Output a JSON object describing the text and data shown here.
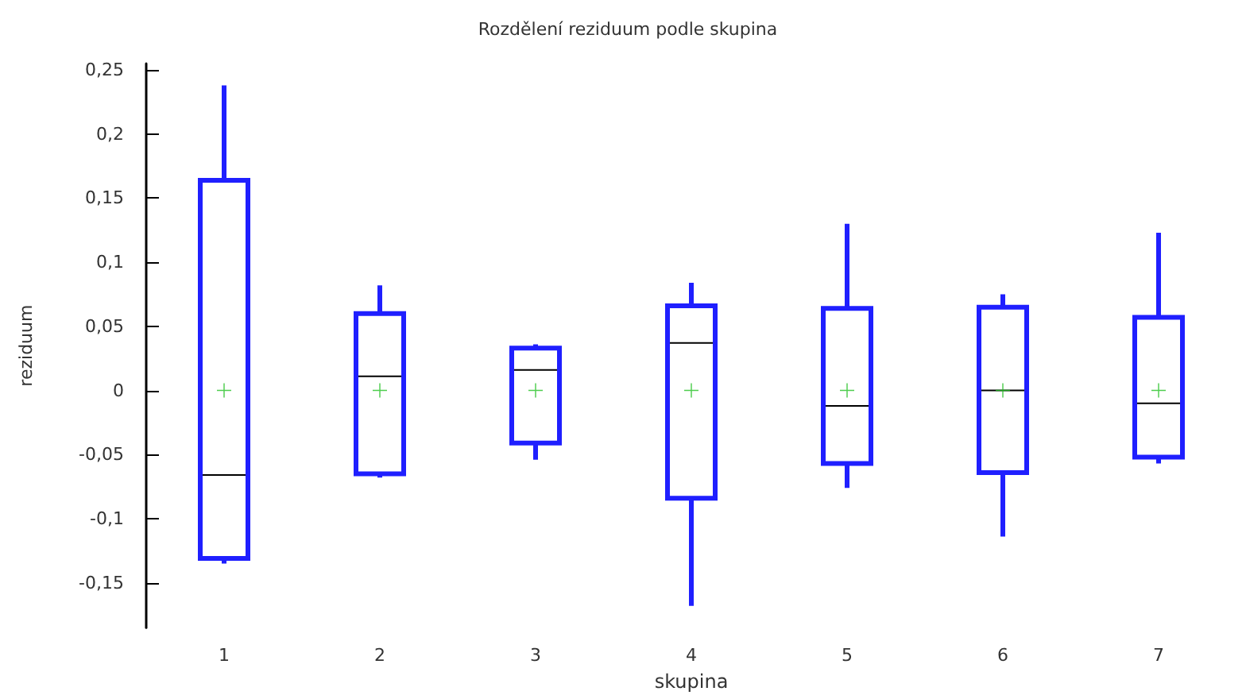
{
  "chart_data": {
    "type": "box",
    "title": "Rozdělení reziduum podle skupina",
    "xlabel": "skupina",
    "ylabel": "reziduum",
    "categories": [
      "1",
      "2",
      "3",
      "4",
      "5",
      "6",
      "7"
    ],
    "ylim": [
      -0.185,
      0.255
    ],
    "yticks": [
      {
        "value": -0.15,
        "label": "-0,15"
      },
      {
        "value": -0.1,
        "label": "-0,1"
      },
      {
        "value": -0.05,
        "label": "-0,05"
      },
      {
        "value": 0,
        "label": "0"
      },
      {
        "value": 0.05,
        "label": "0,05"
      },
      {
        "value": 0.1,
        "label": "0,1"
      },
      {
        "value": 0.15,
        "label": "0,15"
      },
      {
        "value": 0.2,
        "label": "0,2"
      },
      {
        "value": 0.25,
        "label": "0,25"
      }
    ],
    "grid": false,
    "series": [
      {
        "color": "#1f1fff",
        "boxes": [
          {
            "low": -0.135,
            "q1": -0.131,
            "median": -0.066,
            "q3": 0.164,
            "high": 0.238,
            "mean": 0
          },
          {
            "low": -0.068,
            "q1": -0.065,
            "median": 0.011,
            "q3": 0.06,
            "high": 0.082,
            "mean": 0
          },
          {
            "low": -0.054,
            "q1": -0.041,
            "median": 0.016,
            "q3": 0.033,
            "high": 0.036,
            "mean": 0
          },
          {
            "low": -0.168,
            "q1": -0.084,
            "median": 0.037,
            "q3": 0.066,
            "high": 0.084,
            "mean": 0
          },
          {
            "low": -0.076,
            "q1": -0.057,
            "median": -0.012,
            "q3": 0.064,
            "high": 0.13,
            "mean": 0
          },
          {
            "low": -0.114,
            "q1": -0.064,
            "median": 0,
            "q3": 0.065,
            "high": 0.075,
            "mean": 0
          },
          {
            "low": -0.057,
            "q1": -0.052,
            "median": -0.01,
            "q3": 0.057,
            "high": 0.123,
            "mean": 0
          }
        ]
      }
    ]
  }
}
